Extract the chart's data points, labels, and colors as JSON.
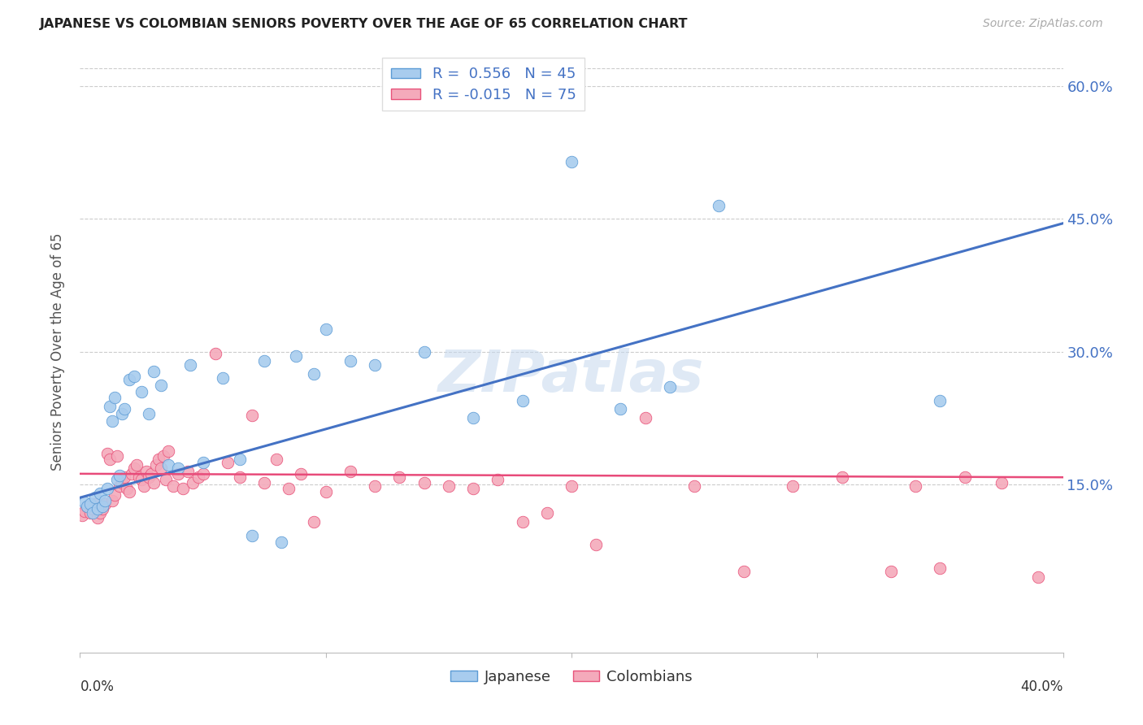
{
  "title": "JAPANESE VS COLOMBIAN SENIORS POVERTY OVER THE AGE OF 65 CORRELATION CHART",
  "source": "Source: ZipAtlas.com",
  "ylabel": "Seniors Poverty Over the Age of 65",
  "xlim": [
    0.0,
    0.4
  ],
  "ylim": [
    -0.04,
    0.64
  ],
  "yticks": [
    0.15,
    0.3,
    0.45,
    0.6
  ],
  "ytick_labels": [
    "15.0%",
    "30.0%",
    "45.0%",
    "60.0%"
  ],
  "watermark": "ZIPatlas",
  "japanese_color": "#A8CCEE",
  "colombian_color": "#F4AABB",
  "japanese_edge_color": "#5B9BD5",
  "colombian_edge_color": "#E8527A",
  "japanese_line_color": "#4472C4",
  "colombian_line_color": "#E84B7A",
  "R_japanese": 0.556,
  "N_japanese": 45,
  "R_colombian": -0.015,
  "N_colombian": 75,
  "jap_line_x": [
    0.0,
    0.4
  ],
  "jap_line_y": [
    0.135,
    0.445
  ],
  "col_line_x": [
    0.0,
    0.4
  ],
  "col_line_y": [
    0.162,
    0.158
  ],
  "japanese_x": [
    0.002,
    0.003,
    0.004,
    0.005,
    0.006,
    0.007,
    0.008,
    0.009,
    0.01,
    0.011,
    0.012,
    0.013,
    0.014,
    0.015,
    0.016,
    0.017,
    0.018,
    0.02,
    0.022,
    0.025,
    0.028,
    0.03,
    0.033,
    0.036,
    0.04,
    0.045,
    0.05,
    0.058,
    0.065,
    0.07,
    0.075,
    0.082,
    0.088,
    0.095,
    0.1,
    0.11,
    0.12,
    0.14,
    0.16,
    0.18,
    0.2,
    0.22,
    0.24,
    0.26,
    0.35
  ],
  "japanese_y": [
    0.13,
    0.125,
    0.128,
    0.118,
    0.135,
    0.122,
    0.14,
    0.125,
    0.132,
    0.145,
    0.238,
    0.222,
    0.248,
    0.155,
    0.16,
    0.23,
    0.235,
    0.268,
    0.272,
    0.255,
    0.23,
    0.278,
    0.262,
    0.172,
    0.168,
    0.285,
    0.175,
    0.27,
    0.178,
    0.092,
    0.29,
    0.085,
    0.295,
    0.275,
    0.325,
    0.29,
    0.285,
    0.3,
    0.225,
    0.245,
    0.515,
    0.235,
    0.26,
    0.465,
    0.245
  ],
  "colombian_x": [
    0.001,
    0.002,
    0.003,
    0.004,
    0.005,
    0.006,
    0.007,
    0.008,
    0.009,
    0.01,
    0.011,
    0.012,
    0.013,
    0.014,
    0.015,
    0.016,
    0.017,
    0.018,
    0.019,
    0.02,
    0.021,
    0.022,
    0.023,
    0.024,
    0.025,
    0.026,
    0.027,
    0.028,
    0.029,
    0.03,
    0.031,
    0.032,
    0.033,
    0.034,
    0.035,
    0.036,
    0.038,
    0.04,
    0.042,
    0.044,
    0.046,
    0.048,
    0.05,
    0.055,
    0.06,
    0.065,
    0.07,
    0.075,
    0.08,
    0.085,
    0.09,
    0.095,
    0.1,
    0.11,
    0.12,
    0.13,
    0.14,
    0.15,
    0.16,
    0.17,
    0.18,
    0.19,
    0.2,
    0.21,
    0.23,
    0.25,
    0.27,
    0.29,
    0.31,
    0.33,
    0.34,
    0.35,
    0.36,
    0.375,
    0.39
  ],
  "colombian_y": [
    0.115,
    0.12,
    0.125,
    0.118,
    0.122,
    0.128,
    0.112,
    0.118,
    0.122,
    0.128,
    0.185,
    0.178,
    0.132,
    0.138,
    0.182,
    0.148,
    0.152,
    0.158,
    0.145,
    0.142,
    0.162,
    0.168,
    0.172,
    0.158,
    0.155,
    0.148,
    0.165,
    0.158,
    0.162,
    0.152,
    0.172,
    0.178,
    0.168,
    0.182,
    0.155,
    0.188,
    0.148,
    0.162,
    0.145,
    0.165,
    0.152,
    0.158,
    0.162,
    0.298,
    0.175,
    0.158,
    0.228,
    0.152,
    0.178,
    0.145,
    0.162,
    0.108,
    0.142,
    0.165,
    0.148,
    0.158,
    0.152,
    0.148,
    0.145,
    0.155,
    0.108,
    0.118,
    0.148,
    0.082,
    0.225,
    0.148,
    0.052,
    0.148,
    0.158,
    0.052,
    0.148,
    0.055,
    0.158,
    0.152,
    0.045
  ]
}
